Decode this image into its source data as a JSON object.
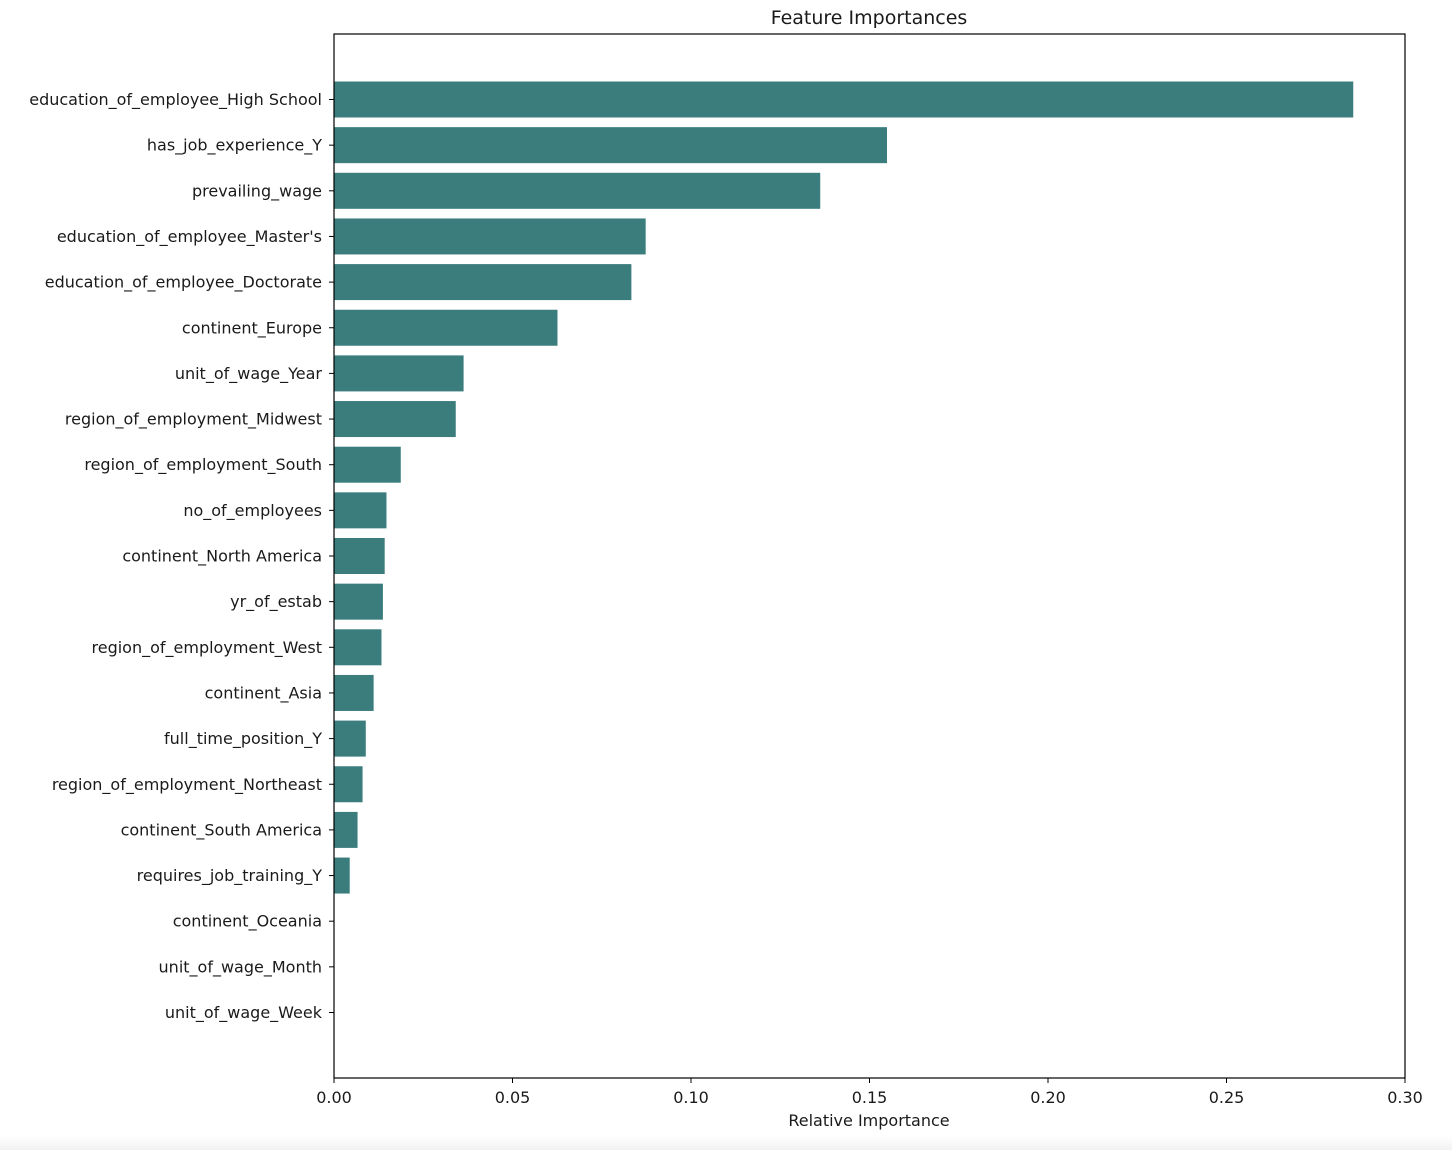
{
  "chart_data": {
    "type": "bar",
    "orientation": "horizontal",
    "title": "Feature Importances",
    "xlabel": "Relative Importance",
    "ylabel": "",
    "xlim": [
      0,
      0.3
    ],
    "xticks": [
      "0.00",
      "0.05",
      "0.10",
      "0.15",
      "0.20",
      "0.25",
      "0.30"
    ],
    "grid": false,
    "bar_color": "#3a7d7c",
    "categories": [
      "education_of_employee_High School",
      "has_job_experience_Y",
      "prevailing_wage",
      "education_of_employee_Master's",
      "education_of_employee_Doctorate",
      "continent_Europe",
      "unit_of_wage_Year",
      "region_of_employment_Midwest",
      "region_of_employment_South",
      "no_of_employees",
      "continent_North America",
      "yr_of_estab",
      "region_of_employment_West",
      "continent_Asia",
      "full_time_position_Y",
      "region_of_employment_Northeast",
      "continent_South America",
      "requires_job_training_Y",
      "continent_Oceania",
      "unit_of_wage_Month",
      "unit_of_wage_Week"
    ],
    "values": [
      0.2855,
      0.1549,
      0.1362,
      0.0873,
      0.0833,
      0.0626,
      0.0363,
      0.0341,
      0.0187,
      0.0147,
      0.0142,
      0.0137,
      0.0133,
      0.0111,
      0.0089,
      0.008,
      0.0066,
      0.0044,
      0.0,
      0.0,
      0.0
    ]
  }
}
